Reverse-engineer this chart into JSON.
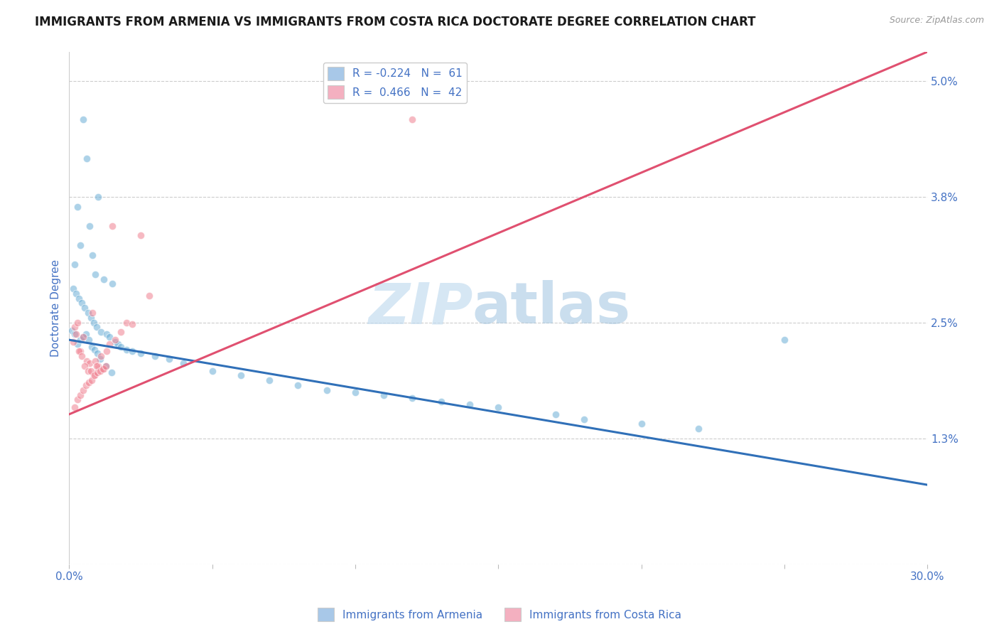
{
  "title": "IMMIGRANTS FROM ARMENIA VS IMMIGRANTS FROM COSTA RICA DOCTORATE DEGREE CORRELATION CHART",
  "source_text": "Source: ZipAtlas.com",
  "ylabel": "Doctorate Degree",
  "watermark_zip": "ZIP",
  "watermark_atlas": "atlas",
  "xlim": [
    0.0,
    30.0
  ],
  "ylim": [
    0.0,
    5.3
  ],
  "xticks": [
    0.0,
    5.0,
    10.0,
    15.0,
    20.0,
    25.0,
    30.0
  ],
  "xticklabels": [
    "0.0%",
    "",
    "",
    "",
    "",
    "",
    "30.0%"
  ],
  "yticks_right": [
    0.0,
    1.3,
    2.5,
    3.8,
    5.0
  ],
  "yticklabels_right": [
    "",
    "1.3%",
    "2.5%",
    "3.8%",
    "5.0%"
  ],
  "legend_blue_label": "R = -0.224   N =  61",
  "legend_pink_label": "R =  0.466   N =  42",
  "legend_blue_color": "#a8c8e8",
  "legend_pink_color": "#f4b0c0",
  "blue_scatter_x": [
    0.5,
    0.6,
    1.0,
    0.3,
    0.7,
    0.4,
    0.8,
    0.2,
    0.9,
    1.2,
    1.5,
    0.15,
    0.25,
    0.35,
    0.45,
    0.55,
    0.65,
    0.75,
    0.85,
    0.95,
    1.1,
    1.3,
    1.4,
    1.6,
    1.7,
    1.8,
    2.0,
    2.2,
    2.5,
    3.0,
    3.5,
    4.0,
    5.0,
    6.0,
    7.0,
    8.0,
    9.0,
    10.0,
    11.0,
    12.0,
    13.0,
    14.0,
    15.0,
    17.0,
    18.0,
    20.0,
    22.0,
    25.0,
    0.1,
    0.18,
    0.28,
    0.38,
    0.48,
    0.58,
    0.68,
    0.78,
    0.88,
    0.98,
    1.08,
    1.28,
    1.48
  ],
  "blue_scatter_y": [
    4.6,
    4.2,
    3.8,
    3.7,
    3.5,
    3.3,
    3.2,
    3.1,
    3.0,
    2.95,
    2.9,
    2.85,
    2.8,
    2.75,
    2.7,
    2.65,
    2.6,
    2.55,
    2.5,
    2.45,
    2.4,
    2.38,
    2.35,
    2.3,
    2.28,
    2.25,
    2.22,
    2.2,
    2.18,
    2.15,
    2.12,
    2.08,
    2.0,
    1.95,
    1.9,
    1.85,
    1.8,
    1.78,
    1.75,
    1.72,
    1.68,
    1.65,
    1.62,
    1.55,
    1.5,
    1.45,
    1.4,
    2.32,
    2.42,
    2.38,
    2.28,
    2.32,
    2.35,
    2.38,
    2.32,
    2.25,
    2.22,
    2.18,
    2.12,
    2.05,
    1.98
  ],
  "pink_scatter_x": [
    0.2,
    0.4,
    1.5,
    0.8,
    0.3,
    0.5,
    0.15,
    0.35,
    0.45,
    0.6,
    0.7,
    1.0,
    1.2,
    1.8,
    2.0,
    2.5,
    0.25,
    0.55,
    0.65,
    0.85,
    1.4,
    1.6,
    0.9,
    1.1,
    2.2,
    2.8,
    1.3,
    0.75,
    0.95,
    0.18,
    0.28,
    0.38,
    0.48,
    0.58,
    0.68,
    0.78,
    0.88,
    0.98,
    1.08,
    1.18,
    1.28,
    12.0
  ],
  "pink_scatter_y": [
    2.45,
    2.2,
    3.5,
    2.6,
    2.5,
    2.35,
    2.3,
    2.2,
    2.15,
    2.1,
    2.08,
    2.05,
    2.02,
    2.4,
    2.5,
    3.4,
    2.38,
    2.05,
    2.0,
    1.95,
    2.28,
    2.32,
    2.1,
    2.15,
    2.48,
    2.78,
    2.2,
    2.0,
    2.05,
    1.62,
    1.7,
    1.75,
    1.8,
    1.85,
    1.88,
    1.9,
    1.95,
    1.98,
    2.0,
    2.02,
    2.05,
    4.6
  ],
  "blue_line_x": [
    0.0,
    30.0
  ],
  "blue_line_y": [
    2.32,
    0.82
  ],
  "pink_line_x": [
    0.0,
    30.0
  ],
  "pink_line_y": [
    1.55,
    5.3
  ],
  "blue_dot_color": "#6baed6",
  "pink_dot_color": "#f08090",
  "blue_line_color": "#3070b8",
  "pink_line_color": "#e05070",
  "title_fontsize": 12,
  "axis_label_color": "#4472c4",
  "grid_color": "#cccccc",
  "background_color": "#ffffff"
}
